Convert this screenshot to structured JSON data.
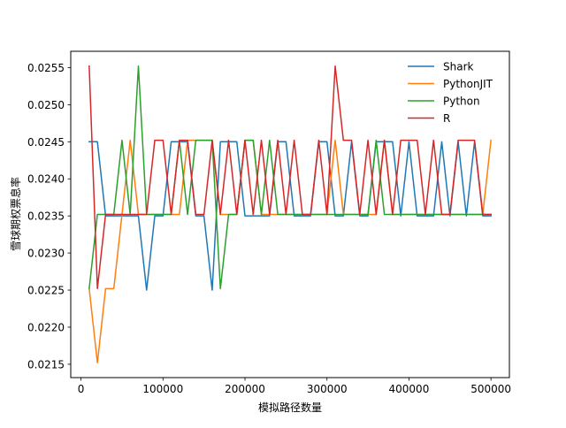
{
  "chart_data": {
    "type": "line",
    "title": "",
    "xlabel": "模拟路径数量",
    "ylabel": "雪球期权票息率",
    "xlim": [
      -12500,
      522500
    ],
    "ylim": [
      0.02132,
      0.02572
    ],
    "x_ticks": [
      0,
      100000,
      200000,
      300000,
      400000,
      500000
    ],
    "x_tick_labels": [
      "0",
      "100000",
      "200000",
      "300000",
      "400000",
      "500000"
    ],
    "y_ticks": [
      0.0215,
      0.022,
      0.0225,
      0.023,
      0.0235,
      0.024,
      0.0245,
      0.025,
      0.0255
    ],
    "y_tick_labels": [
      "0.0215",
      "0.0220",
      "0.0225",
      "0.0230",
      "0.0235",
      "0.0240",
      "0.0245",
      "0.0250",
      "0.0255"
    ],
    "grid": false,
    "legend_position": "top-right",
    "x": [
      10000,
      20000,
      30000,
      40000,
      50000,
      60000,
      70000,
      80000,
      90000,
      100000,
      110000,
      120000,
      130000,
      140000,
      150000,
      160000,
      170000,
      180000,
      190000,
      200000,
      210000,
      220000,
      230000,
      240000,
      250000,
      260000,
      270000,
      280000,
      290000,
      300000,
      310000,
      320000,
      330000,
      340000,
      350000,
      360000,
      370000,
      380000,
      390000,
      400000,
      410000,
      420000,
      430000,
      440000,
      450000,
      460000,
      470000,
      480000,
      490000,
      500000
    ],
    "series": [
      {
        "name": "Shark",
        "color": "#1f77b4",
        "values": [
          0.0245,
          0.0245,
          0.0235,
          0.0235,
          0.0235,
          0.0235,
          0.0235,
          0.0225,
          0.0235,
          0.0235,
          0.0245,
          0.0245,
          0.0245,
          0.0235,
          0.0235,
          0.0225,
          0.0245,
          0.0245,
          0.0245,
          0.0235,
          0.0235,
          0.0235,
          0.0235,
          0.0245,
          0.0245,
          0.0235,
          0.0235,
          0.0235,
          0.0245,
          0.0245,
          0.0235,
          0.0235,
          0.0245,
          0.0235,
          0.0235,
          0.0245,
          0.0245,
          0.0245,
          0.0235,
          0.0245,
          0.0235,
          0.0235,
          0.0235,
          0.0245,
          0.0235,
          0.0245,
          0.0235,
          0.0245,
          0.0235,
          0.0235
        ]
      },
      {
        "name": "PythonJIT",
        "color": "#ff7f0e",
        "values": [
          0.02252,
          0.02152,
          0.02252,
          0.02252,
          0.02352,
          0.02452,
          0.02352,
          0.02352,
          0.02352,
          0.02352,
          0.02352,
          0.02352,
          0.02452,
          0.02452,
          0.02452,
          0.02452,
          0.02352,
          0.02352,
          0.02352,
          0.02452,
          0.02452,
          0.02352,
          0.02352,
          0.02352,
          0.02352,
          0.02352,
          0.02352,
          0.02352,
          0.02352,
          0.02352,
          0.02452,
          0.02352,
          0.02352,
          0.02352,
          0.02352,
          0.02352,
          0.02452,
          0.02352,
          0.02352,
          0.02352,
          0.02352,
          0.02352,
          0.02352,
          0.02352,
          0.02352,
          0.02352,
          0.02352,
          0.02352,
          0.02352,
          0.02452
        ]
      },
      {
        "name": "Python",
        "color": "#2ca02c",
        "values": [
          0.02252,
          0.02352,
          0.02352,
          0.02352,
          0.02452,
          0.02352,
          0.02552,
          0.02352,
          0.02352,
          0.02352,
          0.02352,
          0.02452,
          0.02352,
          0.02452,
          0.02452,
          0.02452,
          0.02252,
          0.02352,
          0.02352,
          0.02452,
          0.02452,
          0.02352,
          0.02452,
          0.02352,
          0.02352,
          0.02352,
          0.02352,
          0.02352,
          0.02352,
          0.02352,
          0.02352,
          0.02352,
          0.02352,
          0.02352,
          0.02352,
          0.02452,
          0.02352,
          0.02352,
          0.02352,
          0.02352,
          0.02352,
          0.02352,
          0.02352,
          0.02352,
          0.02352,
          0.02352,
          0.02352,
          0.02352,
          0.02352,
          0.02352
        ]
      },
      {
        "name": "R",
        "color": "#d62728",
        "values": [
          0.02552,
          0.02252,
          0.02352,
          0.02352,
          0.02352,
          0.02352,
          0.02352,
          0.02352,
          0.02452,
          0.02452,
          0.02352,
          0.02452,
          0.02452,
          0.02352,
          0.02352,
          0.02452,
          0.02352,
          0.02452,
          0.02352,
          0.02452,
          0.02352,
          0.02452,
          0.02352,
          0.02452,
          0.02352,
          0.02452,
          0.02352,
          0.02352,
          0.02452,
          0.02352,
          0.02552,
          0.02452,
          0.02452,
          0.02352,
          0.02452,
          0.02352,
          0.02452,
          0.02352,
          0.02452,
          0.02452,
          0.02452,
          0.02352,
          0.02452,
          0.02352,
          0.02352,
          0.02452,
          0.02452,
          0.02452,
          0.02352,
          0.02352
        ]
      }
    ]
  }
}
